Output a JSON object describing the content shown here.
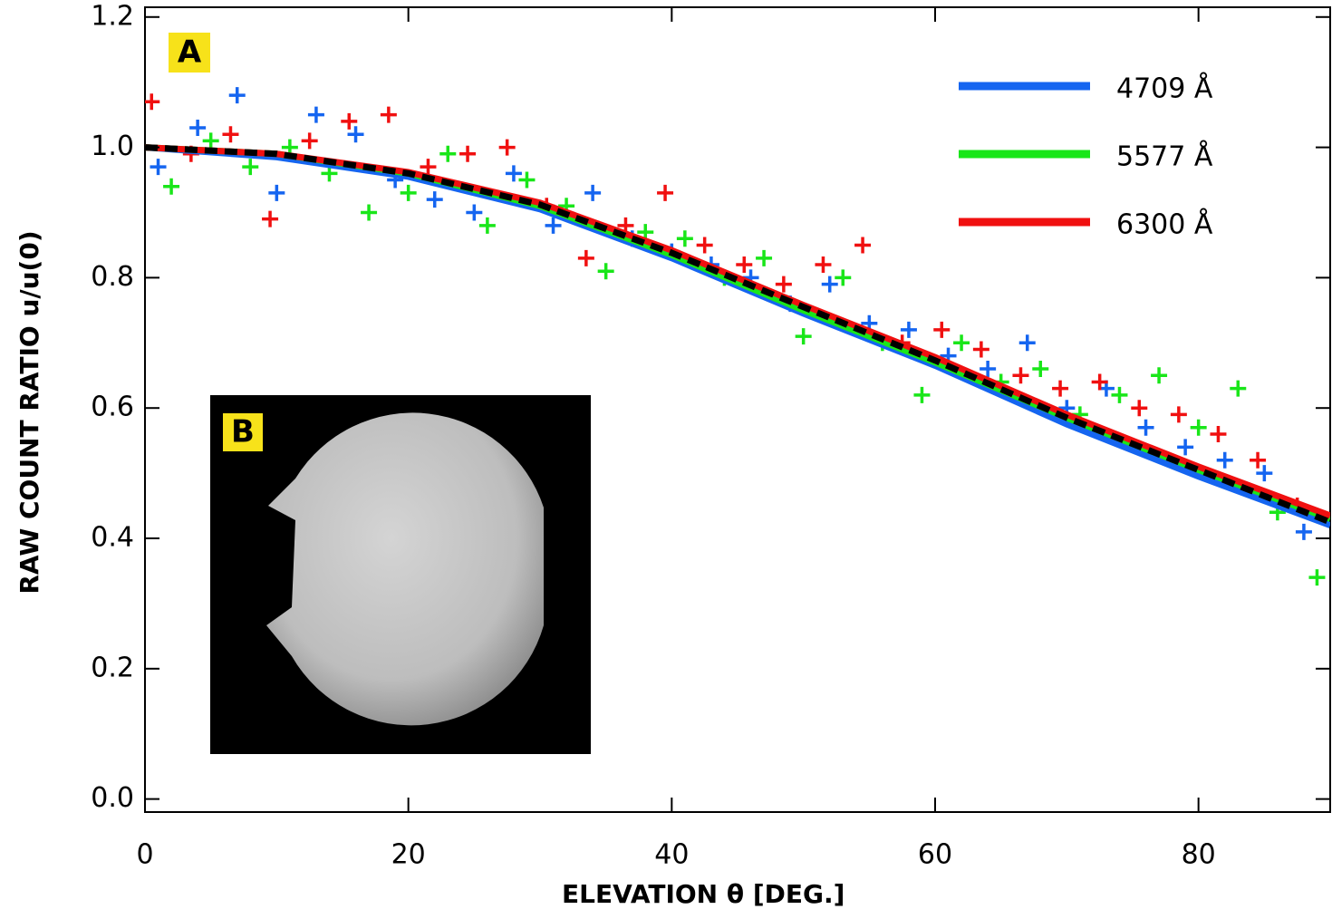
{
  "chart_data": {
    "type": "scatter",
    "xlabel": "ELEVATION θ [DEG.]",
    "ylabel": "RAW COUNT RATIO u/u(0)",
    "panel_labels": [
      "A",
      "B"
    ],
    "xlim": [
      0,
      90
    ],
    "ylim": [
      -0.02,
      1.215
    ],
    "xticks": [
      0,
      20,
      40,
      60,
      80
    ],
    "yticks": [
      {
        "value": 0,
        "label": "0.0"
      },
      0.2,
      0.4,
      0.6,
      0.8,
      {
        "value": 1,
        "label": "1.0"
      },
      1.2
    ],
    "legend": "upper right",
    "series": [
      {
        "name": "4709 Å",
        "color": "#1565f0",
        "x": [
          1,
          4,
          7,
          10,
          13,
          16,
          19,
          22,
          25,
          28,
          31,
          34,
          37,
          40,
          43,
          46,
          49,
          52,
          55,
          58,
          61,
          64,
          67,
          70,
          73,
          76,
          79,
          82,
          85,
          88
        ],
        "values": [
          0.97,
          1.03,
          1.08,
          0.93,
          1.05,
          1.02,
          0.95,
          0.92,
          0.9,
          0.96,
          0.88,
          0.93,
          0.86,
          0.84,
          0.82,
          0.8,
          0.76,
          0.79,
          0.73,
          0.72,
          0.68,
          0.66,
          0.7,
          0.6,
          0.63,
          0.57,
          0.54,
          0.52,
          0.5,
          0.41
        ],
        "fit": {
          "x": [
            0,
            10,
            20,
            30,
            40,
            50,
            60,
            70,
            80,
            90
          ],
          "values": [
            1.0,
            0.985,
            0.955,
            0.905,
            0.83,
            0.745,
            0.665,
            0.575,
            0.495,
            0.42
          ]
        }
      },
      {
        "name": "5577 Å",
        "color": "#19e619",
        "x": [
          2,
          5,
          8,
          11,
          14,
          17,
          20,
          23,
          26,
          29,
          32,
          35,
          38,
          41,
          44,
          47,
          50,
          53,
          56,
          59,
          62,
          65,
          68,
          71,
          74,
          77,
          80,
          83,
          86,
          89
        ],
        "values": [
          0.94,
          1.01,
          0.97,
          1.0,
          0.96,
          0.9,
          0.93,
          0.99,
          0.88,
          0.95,
          0.91,
          0.81,
          0.87,
          0.86,
          0.8,
          0.83,
          0.71,
          0.8,
          0.7,
          0.62,
          0.7,
          0.64,
          0.66,
          0.59,
          0.62,
          0.65,
          0.57,
          0.63,
          0.44,
          0.34
        ],
        "fit": {
          "x": [
            0,
            10,
            20,
            30,
            40,
            50,
            60,
            70,
            80,
            90
          ],
          "values": [
            1.0,
            0.99,
            0.96,
            0.91,
            0.835,
            0.75,
            0.67,
            0.585,
            0.505,
            0.43
          ]
        }
      },
      {
        "name": "6300 Å",
        "color": "#f01010",
        "x": [
          0.5,
          3.5,
          6.5,
          9.5,
          12.5,
          15.5,
          18.5,
          21.5,
          24.5,
          27.5,
          30.5,
          33.5,
          36.5,
          39.5,
          42.5,
          45.5,
          48.5,
          51.5,
          54.5,
          57.5,
          60.5,
          63.5,
          66.5,
          69.5,
          72.5,
          75.5,
          78.5,
          81.5,
          84.5,
          87.5
        ],
        "values": [
          1.07,
          0.99,
          1.02,
          0.89,
          1.01,
          1.04,
          1.05,
          0.97,
          0.99,
          1.0,
          0.91,
          0.83,
          0.88,
          0.93,
          0.85,
          0.82,
          0.79,
          0.82,
          0.85,
          0.7,
          0.72,
          0.69,
          0.65,
          0.63,
          0.64,
          0.6,
          0.59,
          0.56,
          0.52,
          0.45
        ],
        "fit": {
          "x": [
            0,
            10,
            20,
            30,
            40,
            50,
            60,
            70,
            80,
            90
          ],
          "values": [
            1.0,
            0.99,
            0.962,
            0.915,
            0.842,
            0.758,
            0.678,
            0.59,
            0.51,
            0.435
          ]
        }
      }
    ],
    "model_fit": {
      "color": "#000000",
      "dashed": true,
      "x": [
        0,
        10,
        20,
        30,
        40,
        50,
        60,
        70,
        80,
        90
      ],
      "values": [
        1.0,
        0.99,
        0.96,
        0.912,
        0.838,
        0.755,
        0.673,
        0.585,
        0.505,
        0.425
      ]
    }
  }
}
